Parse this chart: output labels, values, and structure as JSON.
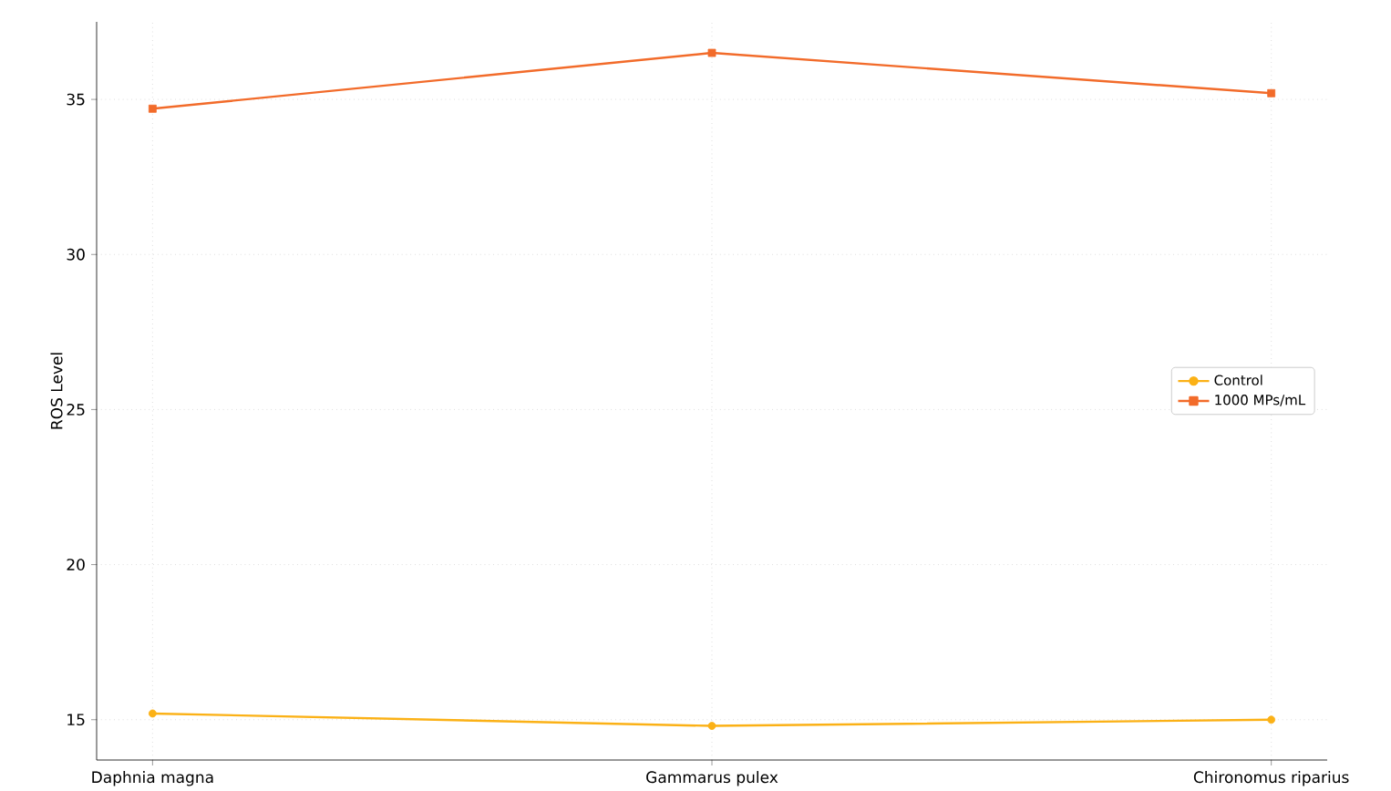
{
  "chart_data": {
    "type": "line",
    "ylabel": "ROS Level",
    "categories": [
      "Daphnia magna",
      "Gammarus pulex",
      "Chironomus riparius"
    ],
    "series": [
      {
        "name": "Control",
        "color": "#fbb116",
        "marker": "circle",
        "values": [
          15.2,
          14.8,
          15.0
        ]
      },
      {
        "name": "1000 MPs/mL",
        "color": "#f26b2a",
        "marker": "square",
        "values": [
          34.7,
          36.5,
          35.2
        ]
      }
    ],
    "ylim": [
      13.7,
      37.5
    ],
    "yticks": [
      15,
      20,
      25,
      30,
      35
    ],
    "grid": true,
    "legend": "right",
    "line_style": "solid"
  }
}
